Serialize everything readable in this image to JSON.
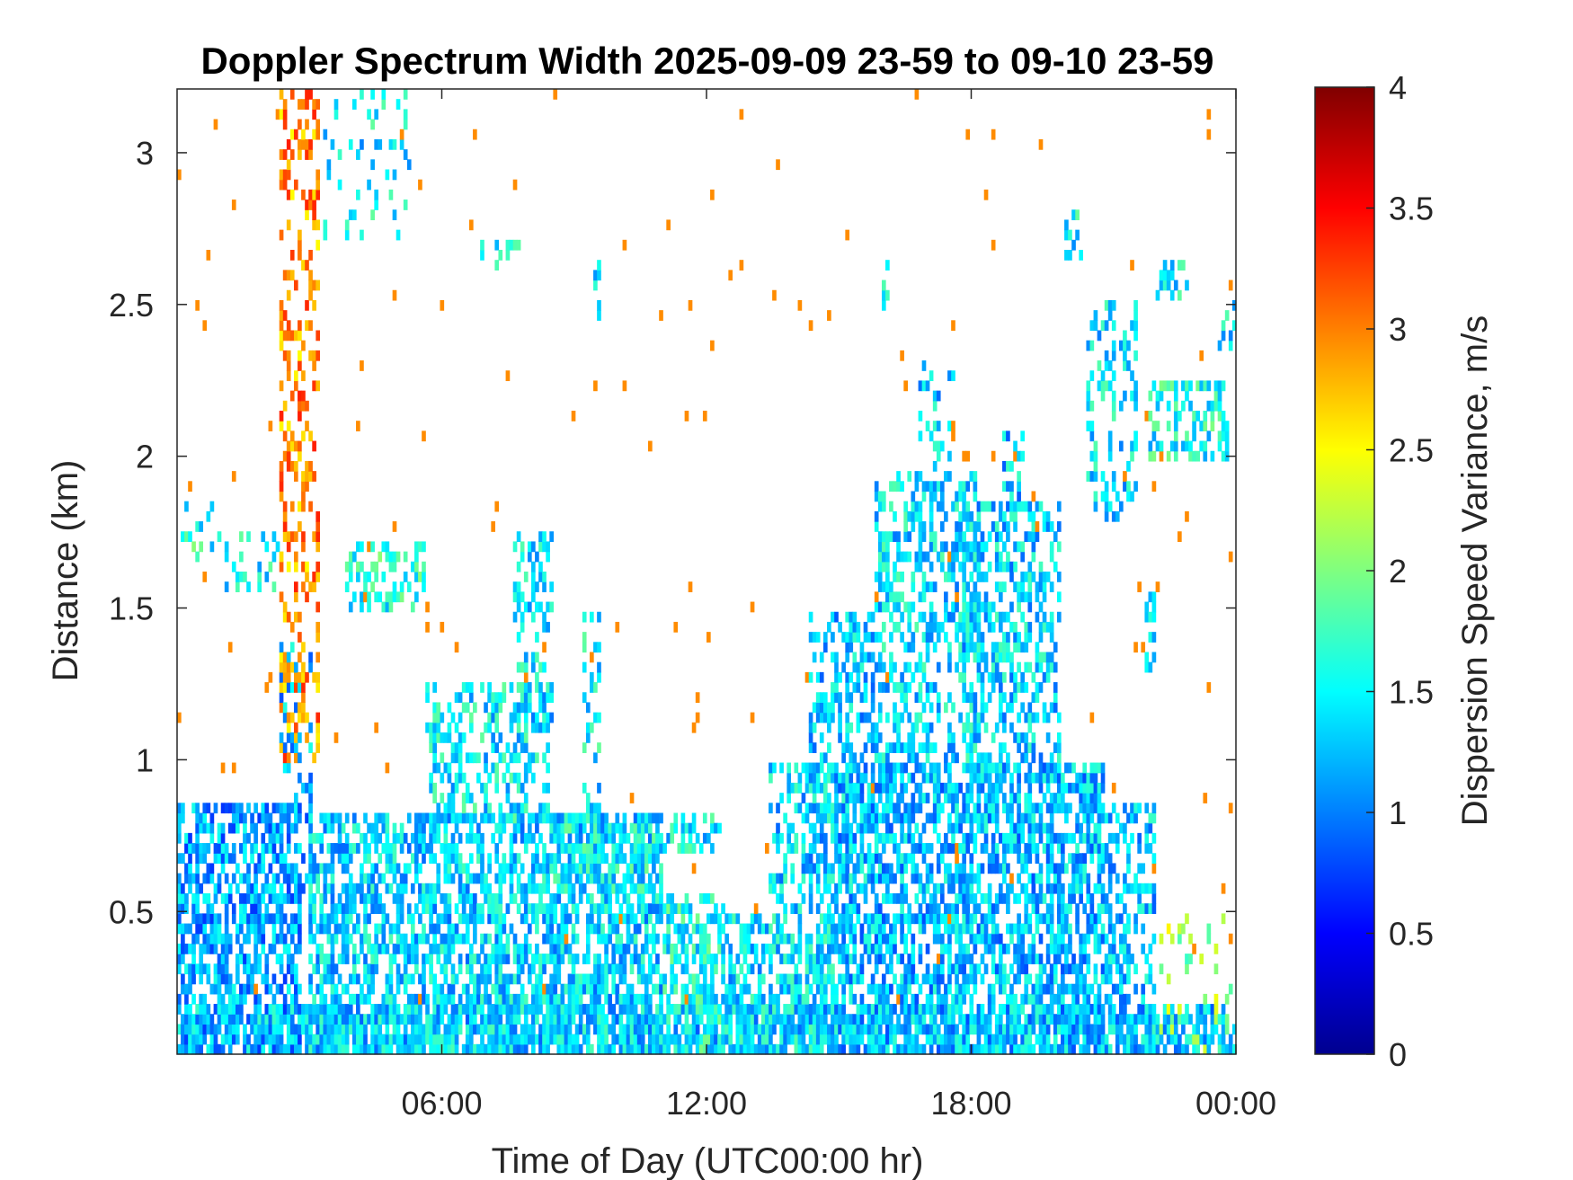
{
  "chart_data": {
    "type": "heatmap",
    "title": "Doppler Spectrum Width 2025-09-09 23-59 to 09-10 23-59",
    "xlabel": "Time of Day (UTC00:00 hr)",
    "ylabel": "Distance (km)",
    "x_ticks": [
      {
        "hour": 6,
        "label": "06:00"
      },
      {
        "hour": 12,
        "label": "12:00"
      },
      {
        "hour": 18,
        "label": "18:00"
      },
      {
        "hour": 24,
        "label": "00:00"
      }
    ],
    "y_ticks": [
      {
        "value": 0.5,
        "label": "0.5"
      },
      {
        "value": 1,
        "label": "1"
      },
      {
        "value": 1.5,
        "label": "1.5"
      },
      {
        "value": 2,
        "label": "2"
      },
      {
        "value": 2.5,
        "label": "2.5"
      },
      {
        "value": 3,
        "label": "3"
      }
    ],
    "xlim_hours": [
      0,
      24
    ],
    "ylim_km": [
      0.03,
      3.21
    ],
    "grid": false,
    "colormap": "jet",
    "colorbar": {
      "label": "Dispersion Speed Variance, m/s",
      "range": [
        0,
        4
      ],
      "ticks": [
        {
          "value": 0,
          "label": "0"
        },
        {
          "value": 0.5,
          "label": "0.5"
        },
        {
          "value": 1,
          "label": "1"
        },
        {
          "value": 1.5,
          "label": "1.5"
        },
        {
          "value": 2,
          "label": "2"
        },
        {
          "value": 2.5,
          "label": "2.5"
        },
        {
          "value": 3,
          "label": "3"
        },
        {
          "value": 3.5,
          "label": "3.5"
        },
        {
          "value": 4,
          "label": "4"
        }
      ]
    },
    "regions": [
      {
        "t0": 0.0,
        "t1": 24.0,
        "h0": 0.03,
        "h1": 0.2,
        "v": 1.3,
        "d": 0.65
      },
      {
        "t0": 0.0,
        "t1": 2.8,
        "h0": 0.03,
        "h1": 0.85,
        "v": 1.15,
        "d": 0.6
      },
      {
        "t0": 2.3,
        "t1": 3.1,
        "h0": 0.55,
        "h1": 1.4,
        "v": 1.2,
        "d": 0.28
      },
      {
        "t0": 1.0,
        "t1": 2.3,
        "h0": 1.55,
        "h1": 1.75,
        "v": 1.45,
        "d": 0.25
      },
      {
        "t0": 0.0,
        "t1": 1.2,
        "h0": 1.65,
        "h1": 1.85,
        "v": 1.6,
        "d": 0.22
      },
      {
        "t0": 3.0,
        "t1": 11.0,
        "h0": 0.03,
        "h1": 0.82,
        "v": 1.35,
        "d": 0.62
      },
      {
        "t0": 3.8,
        "t1": 5.6,
        "h0": 1.5,
        "h1": 1.72,
        "v": 1.6,
        "d": 0.45
      },
      {
        "t0": 5.6,
        "t1": 8.4,
        "h0": 0.8,
        "h1": 1.25,
        "v": 1.45,
        "d": 0.38
      },
      {
        "t0": 7.6,
        "t1": 8.5,
        "h0": 1.1,
        "h1": 1.75,
        "v": 1.4,
        "d": 0.35
      },
      {
        "t0": 9.2,
        "t1": 9.6,
        "h0": 0.8,
        "h1": 1.5,
        "v": 1.45,
        "d": 0.3
      },
      {
        "t0": 9.4,
        "t1": 9.6,
        "h0": 2.45,
        "h1": 2.65,
        "v": 1.5,
        "d": 0.45
      },
      {
        "t0": 6.9,
        "t1": 7.8,
        "h0": 2.63,
        "h1": 2.72,
        "v": 1.5,
        "d": 0.35
      },
      {
        "t0": 8.5,
        "t1": 11.0,
        "h0": 0.55,
        "h1": 0.8,
        "v": 1.5,
        "d": 0.5
      },
      {
        "t0": 11.0,
        "t1": 12.4,
        "h0": 0.03,
        "h1": 0.55,
        "v": 1.55,
        "d": 0.6
      },
      {
        "t0": 11.0,
        "t1": 12.3,
        "h0": 0.68,
        "h1": 0.82,
        "v": 1.45,
        "d": 0.4
      },
      {
        "t0": 12.4,
        "t1": 15.0,
        "h0": 0.03,
        "h1": 0.5,
        "v": 1.4,
        "d": 0.62
      },
      {
        "t0": 13.4,
        "t1": 15.0,
        "h0": 0.5,
        "h1": 1.0,
        "v": 1.35,
        "d": 0.45
      },
      {
        "t0": 14.3,
        "t1": 15.8,
        "h0": 0.6,
        "h1": 1.5,
        "v": 1.3,
        "d": 0.45
      },
      {
        "t0": 15.0,
        "t1": 21.0,
        "h0": 0.03,
        "h1": 1.0,
        "v": 1.25,
        "d": 0.62
      },
      {
        "t0": 15.8,
        "t1": 18.2,
        "h0": 1.0,
        "h1": 1.95,
        "v": 1.4,
        "d": 0.45
      },
      {
        "t0": 16.8,
        "t1": 17.6,
        "h0": 1.95,
        "h1": 2.3,
        "v": 1.35,
        "d": 0.28
      },
      {
        "t0": 15.8,
        "t1": 16.1,
        "h0": 2.45,
        "h1": 2.65,
        "v": 1.4,
        "d": 0.3
      },
      {
        "t0": 17.8,
        "t1": 20.0,
        "h0": 1.0,
        "h1": 1.85,
        "v": 1.35,
        "d": 0.42
      },
      {
        "t0": 18.7,
        "t1": 19.2,
        "h0": 1.8,
        "h1": 2.1,
        "v": 1.3,
        "d": 0.3
      },
      {
        "t0": 21.0,
        "t1": 22.2,
        "h0": 0.03,
        "h1": 0.85,
        "v": 1.3,
        "d": 0.45
      },
      {
        "t0": 20.6,
        "t1": 21.8,
        "h0": 1.8,
        "h1": 2.5,
        "v": 1.4,
        "d": 0.35
      },
      {
        "t0": 21.9,
        "t1": 22.2,
        "h0": 1.3,
        "h1": 1.55,
        "v": 1.5,
        "d": 0.5
      },
      {
        "t0": 22.0,
        "t1": 23.8,
        "h0": 2.0,
        "h1": 2.25,
        "v": 1.55,
        "d": 0.45
      },
      {
        "t0": 22.2,
        "t1": 22.9,
        "h0": 2.5,
        "h1": 2.65,
        "v": 1.5,
        "d": 0.4
      },
      {
        "t0": 20.1,
        "t1": 20.5,
        "h0": 2.65,
        "h1": 2.8,
        "v": 1.5,
        "d": 0.45
      },
      {
        "t0": 23.6,
        "t1": 24.0,
        "h0": 2.35,
        "h1": 2.5,
        "v": 1.4,
        "d": 0.35
      },
      {
        "t0": 22.3,
        "t1": 24.0,
        "h0": 0.03,
        "h1": 0.5,
        "v": 2.1,
        "d": 0.12
      },
      {
        "t0": 2.3,
        "t1": 3.2,
        "h0": 1.0,
        "h1": 3.21,
        "v": 2.95,
        "d": 0.3
      },
      {
        "t0": 3.2,
        "t1": 5.3,
        "h0": 2.7,
        "h1": 3.21,
        "v": 1.45,
        "d": 0.12
      }
    ]
  }
}
